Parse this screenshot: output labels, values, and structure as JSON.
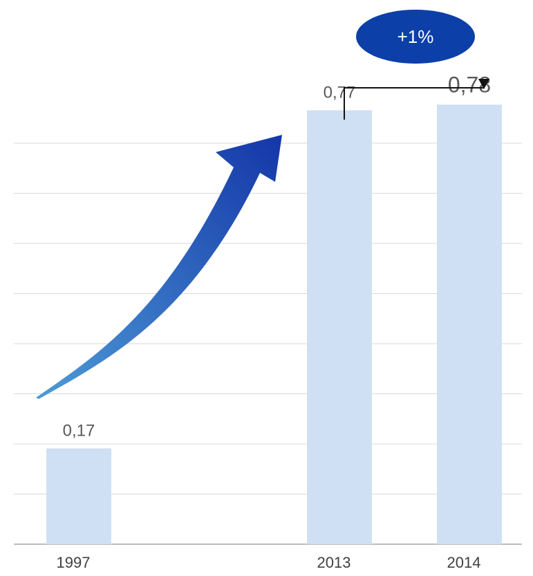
{
  "chart_data": {
    "type": "bar",
    "categories": [
      "1997",
      "2013",
      "2014"
    ],
    "values": [
      0.17,
      0.77,
      0.78
    ],
    "data_labels": [
      "0,17",
      "0,77",
      "0,78"
    ],
    "ylim": [
      0,
      0.8
    ],
    "grid": true,
    "annotations": {
      "change_label": "+1%",
      "change_from": "2013",
      "change_to": "2014",
      "growth_arrow": "curved arrow rising from 1997 to 2013"
    },
    "colors": {
      "bar": "#cfe0f5",
      "annotation_bubble": "#0d3fa8",
      "arrow_start": "#4d9bd6",
      "arrow_end": "#1436a8"
    }
  }
}
